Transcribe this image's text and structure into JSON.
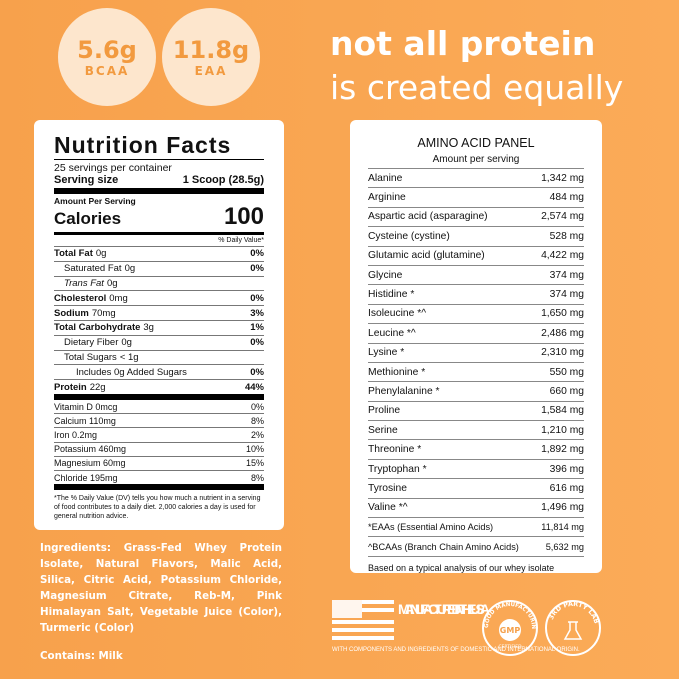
{
  "badges": [
    {
      "value": "5.6g",
      "label": "BCAA"
    },
    {
      "value": "11.8g",
      "label": "EAA"
    }
  ],
  "headline": [
    "not all protein",
    "is created equally"
  ],
  "nutrition": {
    "title": "Nutrition Facts",
    "servings": "25 servings per container",
    "serving_size_label": "Serving size",
    "serving_size_value": "1 Scoop (28.5g)",
    "amount_per_serving": "Amount Per Serving",
    "calories_label": "Calories",
    "calories_value": "100",
    "daily_value_header": "% Daily Value*",
    "rows": [
      {
        "name": "Total Fat",
        "amount": "0g",
        "dv": "0%"
      },
      {
        "name": "Saturated Fat",
        "amount": "0g",
        "dv": "0%"
      },
      {
        "name": "Trans Fat",
        "amount": "0g"
      },
      {
        "name": "Cholesterol",
        "amount": "0mg",
        "dv": "0%"
      },
      {
        "name": "Sodium",
        "amount": "70mg",
        "dv": "3%"
      },
      {
        "name": "Total Carbohydrate",
        "amount": "3g",
        "dv": "1%"
      },
      {
        "name": "Dietary Fiber",
        "amount": "0g",
        "dv": "0%"
      },
      {
        "name": "Total Sugars",
        "amount": "< 1g"
      },
      {
        "name": "Includes 0g Added Sugars",
        "dv": "0%"
      },
      {
        "name": "Protein",
        "amount": "22g",
        "dv": "44%"
      }
    ],
    "vitamins": [
      {
        "name": "Vitamin D 0mcg",
        "dv": "0%"
      },
      {
        "name": "Calcium 110mg",
        "dv": "8%"
      },
      {
        "name": "Iron 0.2mg",
        "dv": "2%"
      },
      {
        "name": "Potassium 460mg",
        "dv": "10%"
      },
      {
        "name": "Magnesium 60mg",
        "dv": "15%"
      },
      {
        "name": "Chloride 195mg",
        "dv": "8%"
      }
    ],
    "footnote": "*The % Daily Value (DV) tells you how much a nutrient in a serving of food contributes to a daily diet. 2,000 calories a day is used for general nutrition advice."
  },
  "amino": {
    "title": "AMINO ACID PANEL",
    "subtitle": "Amount per serving",
    "rows": [
      [
        "Alanine",
        "1,342 mg"
      ],
      [
        "Arginine",
        "484 mg"
      ],
      [
        "Aspartic acid (asparagine)",
        "2,574 mg"
      ],
      [
        "Cysteine (cystine)",
        "528 mg"
      ],
      [
        "Glutamic acid (glutamine)",
        "4,422 mg"
      ],
      [
        "Glycine",
        "374 mg"
      ],
      [
        "Histidine *",
        "374 mg"
      ],
      [
        "Isoleucine *^",
        "1,650 mg"
      ],
      [
        "Leucine *^",
        "2,486 mg"
      ],
      [
        "Lysine *",
        "2,310 mg"
      ],
      [
        "Methionine *",
        "550 mg"
      ],
      [
        "Phenylalanine *",
        "660 mg"
      ],
      [
        "Proline",
        "1,584 mg"
      ],
      [
        "Serine",
        "1,210 mg"
      ],
      [
        "Threonine *",
        "1,892 mg"
      ],
      [
        "Tryptophan *",
        "396 mg"
      ],
      [
        "Tyrosine",
        "616 mg"
      ],
      [
        "Valine *^",
        "1,496 mg"
      ],
      [
        "*EAAs (Essential Amino Acids)",
        "11,814 mg"
      ],
      [
        "^BCAAs (Branch Chain Amino Acids)",
        "5,632 mg"
      ]
    ],
    "footer": "Based on a typical analysis of our whey isolate"
  },
  "ingredients": "Ingredients: Grass-Fed Whey Protein Isolate, Natural Flavors, Malic Acid, Silica, Citric Acid, Potassium Chloride, Magnesium Citrate, Reb-M, Pink Himalayan Salt, Vegetable Juice (Color), Turmeric (Color)",
  "contains": "Contains: Milk",
  "made_in": {
    "title": "MANUFACTURED IN THE USA",
    "note": "WITH COMPONENTS AND INGREDIENTS OF DOMESTIC AND INTERNATIONAL ORIGIN."
  },
  "gmp": {
    "ring": "GOOD MANUFACTURING PRACTICE",
    "center": "GMP",
    "sub": "CERTIFIED"
  },
  "lab": {
    "ring": "3RD PARTY LAB TESTED"
  }
}
